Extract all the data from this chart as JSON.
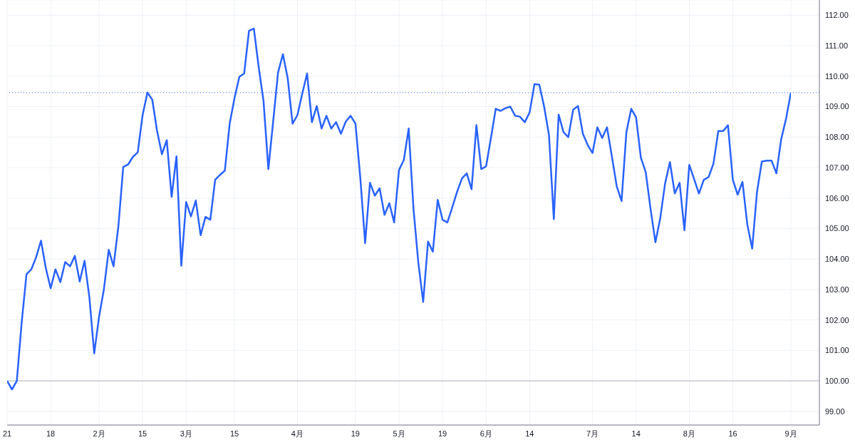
{
  "chart_data": {
    "type": "line",
    "categories": [
      "21",
      null,
      null,
      null,
      null,
      null,
      null,
      null,
      null,
      "18",
      null,
      null,
      null,
      null,
      null,
      null,
      null,
      null,
      null,
      "2月",
      null,
      null,
      null,
      null,
      null,
      null,
      null,
      null,
      "15",
      null,
      null,
      null,
      null,
      null,
      null,
      null,
      null,
      "3月",
      null,
      null,
      null,
      null,
      null,
      null,
      null,
      null,
      null,
      "15",
      null,
      null,
      null,
      null,
      null,
      null,
      null,
      null,
      null,
      null,
      null,
      null,
      "4月",
      null,
      null,
      null,
      null,
      null,
      null,
      null,
      null,
      null,
      null,
      null,
      "19",
      null,
      null,
      null,
      null,
      null,
      null,
      null,
      null,
      "5月",
      null,
      null,
      null,
      null,
      null,
      null,
      null,
      null,
      "19",
      null,
      null,
      null,
      null,
      null,
      null,
      null,
      null,
      "6月",
      null,
      null,
      null,
      null,
      null,
      null,
      null,
      null,
      "14",
      null,
      null,
      null,
      null,
      null,
      null,
      null,
      null,
      null,
      null,
      null,
      null,
      "7月",
      null,
      null,
      null,
      null,
      null,
      null,
      null,
      null,
      "14",
      null,
      null,
      null,
      null,
      null,
      null,
      null,
      null,
      null,
      null,
      "8月",
      null,
      null,
      null,
      null,
      null,
      null,
      null,
      null,
      "16",
      null,
      null,
      null,
      null,
      null,
      null,
      null,
      null,
      null,
      null,
      null,
      "9月"
    ],
    "series": [
      {
        "color": "#2962ff",
        "values": [
          100.0,
          99.72,
          100.0,
          101.9,
          103.5,
          103.66,
          104.06,
          104.6,
          103.7,
          103.04,
          103.66,
          103.24,
          103.9,
          103.76,
          104.1,
          103.26,
          103.94,
          102.75,
          100.9,
          102.1,
          103.0,
          104.3,
          103.76,
          105.08,
          107.02,
          107.1,
          107.35,
          107.5,
          108.72,
          109.46,
          109.23,
          108.2,
          107.44,
          107.9,
          106.04,
          107.37,
          103.78,
          105.87,
          105.4,
          105.92,
          104.78,
          105.38,
          105.29,
          106.6,
          106.76,
          106.9,
          108.44,
          109.28,
          109.98,
          110.09,
          111.49,
          111.56,
          110.3,
          109.18,
          106.95,
          108.53,
          110.12,
          110.72,
          109.93,
          108.44,
          108.72,
          109.42,
          110.09,
          108.49,
          109.02,
          108.28,
          108.7,
          108.28,
          108.49,
          108.11,
          108.51,
          108.7,
          108.44,
          106.67,
          104.52,
          106.5,
          106.08,
          106.32,
          105.45,
          105.83,
          105.2,
          106.92,
          107.25,
          108.28,
          105.64,
          103.87,
          102.59,
          104.57,
          104.24,
          105.94,
          105.29,
          105.2,
          105.69,
          106.2,
          106.64,
          106.81,
          106.29,
          108.39,
          106.95,
          107.04,
          107.97,
          108.93,
          108.86,
          108.95,
          109.0,
          108.7,
          108.67,
          108.49,
          108.81,
          109.74,
          109.72,
          109.0,
          108.07,
          105.31,
          108.74,
          108.16,
          108.0,
          108.9,
          109.02,
          108.11,
          107.74,
          107.48,
          108.32,
          107.97,
          108.32,
          107.37,
          106.39,
          105.9,
          108.16,
          108.93,
          108.65,
          107.32,
          106.85,
          105.64,
          104.55,
          105.34,
          106.48,
          107.18,
          106.15,
          106.5,
          104.94,
          107.09,
          106.62,
          106.15,
          106.6,
          106.69,
          107.13,
          108.2,
          108.2,
          108.39,
          106.6,
          106.11,
          106.53,
          105.13,
          104.34,
          106.2,
          107.2,
          107.23,
          107.23,
          106.81,
          107.93,
          108.6,
          109.46
        ]
      }
    ],
    "ylim": [
      98.55,
      112.5
    ],
    "yticks": [
      {
        "value": 99,
        "label": "99.00"
      },
      {
        "value": 100,
        "label": "100.00"
      },
      {
        "value": 101,
        "label": "101.00"
      },
      {
        "value": 102,
        "label": "102.00"
      },
      {
        "value": 103,
        "label": "103.00"
      },
      {
        "value": 104,
        "label": "104.00"
      },
      {
        "value": 105,
        "label": "105.00"
      },
      {
        "value": 106,
        "label": "106.00"
      },
      {
        "value": 107,
        "label": "107.00"
      },
      {
        "value": 108,
        "label": "108.00"
      },
      {
        "value": 109,
        "label": "109.00"
      },
      {
        "value": 110,
        "label": "110.00"
      },
      {
        "value": 111,
        "label": "111.00"
      },
      {
        "value": 112,
        "label": "112.00"
      }
    ],
    "grid": true,
    "ref_lines": [
      {
        "axis": "y",
        "value": 100,
        "color": "#b2b5be",
        "line_style": "solid"
      },
      {
        "axis": "y",
        "value": 109.46,
        "color": "#2962ff",
        "line_style": "dotted"
      }
    ],
    "marker": "none",
    "line_style": "solid"
  }
}
